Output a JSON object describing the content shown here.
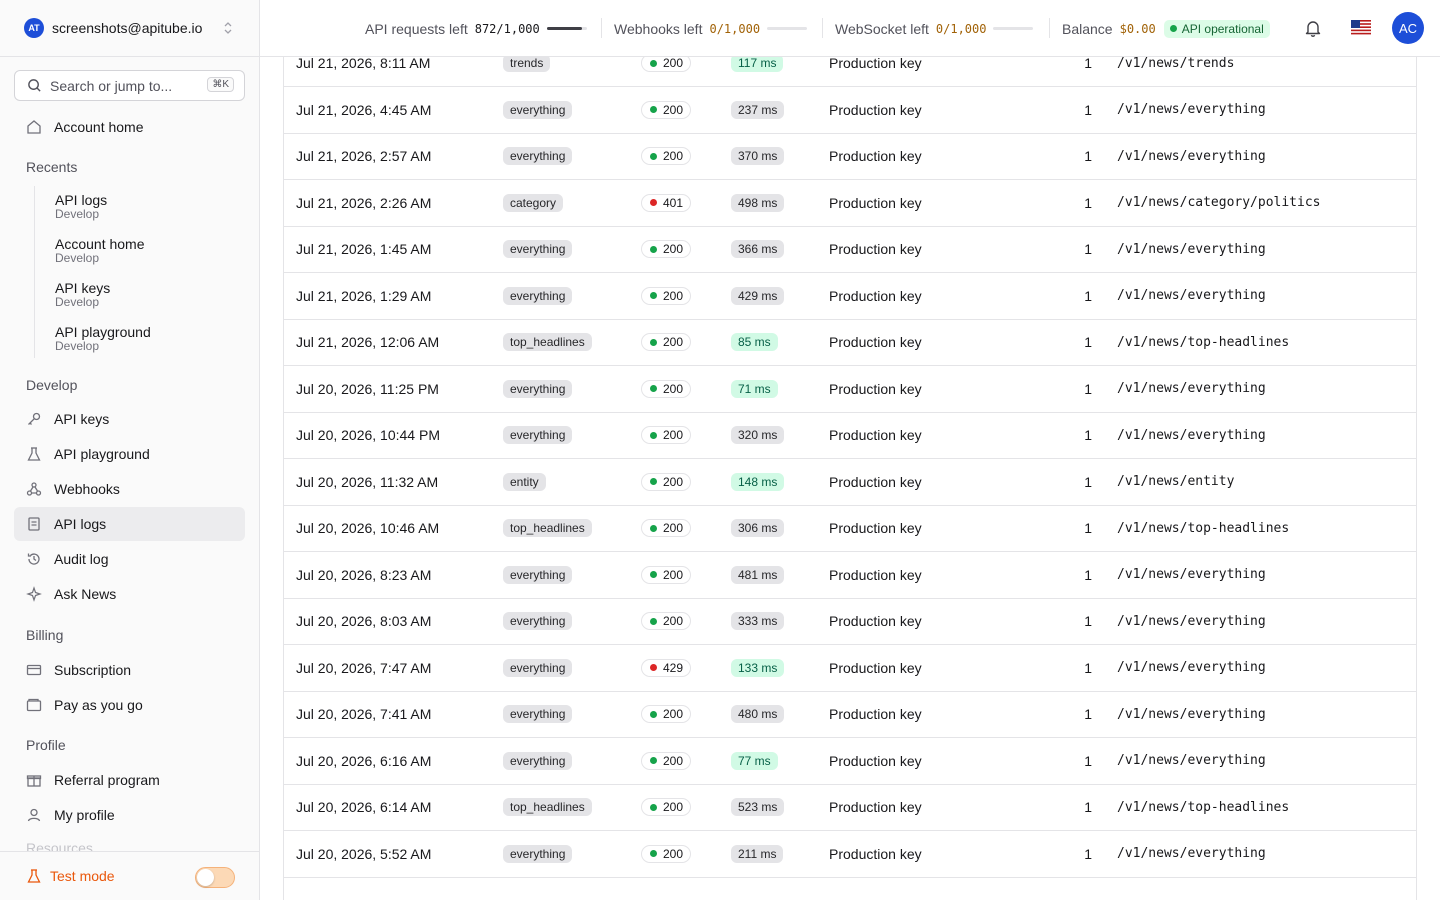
{
  "account": {
    "logo_text": "AT",
    "email": "screenshots@apitube.io"
  },
  "search": {
    "placeholder": "Search or jump to...",
    "shortcut": "⌘K"
  },
  "nav": {
    "account_home": "Account home"
  },
  "recents": {
    "title": "Recents",
    "items": [
      {
        "label": "API logs",
        "sub": "Develop"
      },
      {
        "label": "Account home",
        "sub": "Develop"
      },
      {
        "label": "API keys",
        "sub": "Develop"
      },
      {
        "label": "API playground",
        "sub": "Develop"
      }
    ]
  },
  "develop": {
    "title": "Develop",
    "items": [
      {
        "label": "API keys",
        "icon": "key-icon"
      },
      {
        "label": "API playground",
        "icon": "flask-icon"
      },
      {
        "label": "Webhooks",
        "icon": "webhook-icon"
      },
      {
        "label": "API logs",
        "icon": "logs-icon",
        "active": true
      },
      {
        "label": "Audit log",
        "icon": "history-icon"
      },
      {
        "label": "Ask News",
        "icon": "sparkle-icon"
      }
    ]
  },
  "billing": {
    "title": "Billing",
    "items": [
      {
        "label": "Subscription",
        "icon": "credit-card-icon"
      },
      {
        "label": "Pay as you go",
        "icon": "wallet-icon"
      }
    ]
  },
  "profile": {
    "title": "Profile",
    "items": [
      {
        "label": "Referral program",
        "icon": "gift-icon"
      },
      {
        "label": "My profile",
        "icon": "user-icon"
      }
    ]
  },
  "resources": {
    "label": "Resources"
  },
  "footer": {
    "test_mode_label": "Test mode",
    "test_mode_on": false
  },
  "header": {
    "api_requests": {
      "label": "API requests left",
      "value": "872/1,000",
      "fraction": 0.872,
      "value_color": "#18181b"
    },
    "webhooks": {
      "label": "Webhooks left",
      "value": "0/1,000",
      "fraction": 0,
      "value_color": "#a16207"
    },
    "websocket": {
      "label": "WebSocket left",
      "value": "0/1,000",
      "fraction": 0,
      "value_color": "#a16207"
    },
    "balance": {
      "label": "Balance",
      "value": "$0.00",
      "value_color": "#a16207"
    },
    "status": {
      "label": "API operational",
      "color": "#16a34a"
    },
    "avatar": "AC"
  },
  "colors": {
    "ok_dot": "#16a34a",
    "error_dot": "#dc2626",
    "fast_latency_bg": "#d1fae5",
    "fast_latency_text": "#065f46",
    "slow_latency_bg": "#e4e4e7",
    "slow_latency_text": "#27272a"
  },
  "logs": [
    {
      "date": "Jul 21, 2026, 8:11 AM",
      "endpoint": "trends",
      "status": "200",
      "latency": "117 ms",
      "fast": true,
      "key": "Production key",
      "cost": "1",
      "path": "/v1/news/trends"
    },
    {
      "date": "Jul 21, 2026, 4:45 AM",
      "endpoint": "everything",
      "status": "200",
      "latency": "237 ms",
      "fast": false,
      "key": "Production key",
      "cost": "1",
      "path": "/v1/news/everything"
    },
    {
      "date": "Jul 21, 2026, 2:57 AM",
      "endpoint": "everything",
      "status": "200",
      "latency": "370 ms",
      "fast": false,
      "key": "Production key",
      "cost": "1",
      "path": "/v1/news/everything"
    },
    {
      "date": "Jul 21, 2026, 2:26 AM",
      "endpoint": "category",
      "status": "401",
      "latency": "498 ms",
      "fast": false,
      "key": "Production key",
      "cost": "1",
      "path": "/v1/news/category/politics"
    },
    {
      "date": "Jul 21, 2026, 1:45 AM",
      "endpoint": "everything",
      "status": "200",
      "latency": "366 ms",
      "fast": false,
      "key": "Production key",
      "cost": "1",
      "path": "/v1/news/everything"
    },
    {
      "date": "Jul 21, 2026, 1:29 AM",
      "endpoint": "everything",
      "status": "200",
      "latency": "429 ms",
      "fast": false,
      "key": "Production key",
      "cost": "1",
      "path": "/v1/news/everything"
    },
    {
      "date": "Jul 21, 2026, 12:06 AM",
      "endpoint": "top_headlines",
      "status": "200",
      "latency": "85 ms",
      "fast": true,
      "key": "Production key",
      "cost": "1",
      "path": "/v1/news/top-headlines"
    },
    {
      "date": "Jul 20, 2026, 11:25 PM",
      "endpoint": "everything",
      "status": "200",
      "latency": "71 ms",
      "fast": true,
      "key": "Production key",
      "cost": "1",
      "path": "/v1/news/everything"
    },
    {
      "date": "Jul 20, 2026, 10:44 PM",
      "endpoint": "everything",
      "status": "200",
      "latency": "320 ms",
      "fast": false,
      "key": "Production key",
      "cost": "1",
      "path": "/v1/news/everything"
    },
    {
      "date": "Jul 20, 2026, 11:32 AM",
      "endpoint": "entity",
      "status": "200",
      "latency": "148 ms",
      "fast": true,
      "key": "Production key",
      "cost": "1",
      "path": "/v1/news/entity"
    },
    {
      "date": "Jul 20, 2026, 10:46 AM",
      "endpoint": "top_headlines",
      "status": "200",
      "latency": "306 ms",
      "fast": false,
      "key": "Production key",
      "cost": "1",
      "path": "/v1/news/top-headlines"
    },
    {
      "date": "Jul 20, 2026, 8:23 AM",
      "endpoint": "everything",
      "status": "200",
      "latency": "481 ms",
      "fast": false,
      "key": "Production key",
      "cost": "1",
      "path": "/v1/news/everything"
    },
    {
      "date": "Jul 20, 2026, 8:03 AM",
      "endpoint": "everything",
      "status": "200",
      "latency": "333 ms",
      "fast": false,
      "key": "Production key",
      "cost": "1",
      "path": "/v1/news/everything"
    },
    {
      "date": "Jul 20, 2026, 7:47 AM",
      "endpoint": "everything",
      "status": "429",
      "latency": "133 ms",
      "fast": true,
      "key": "Production key",
      "cost": "1",
      "path": "/v1/news/everything"
    },
    {
      "date": "Jul 20, 2026, 7:41 AM",
      "endpoint": "everything",
      "status": "200",
      "latency": "480 ms",
      "fast": false,
      "key": "Production key",
      "cost": "1",
      "path": "/v1/news/everything"
    },
    {
      "date": "Jul 20, 2026, 6:16 AM",
      "endpoint": "everything",
      "status": "200",
      "latency": "77 ms",
      "fast": true,
      "key": "Production key",
      "cost": "1",
      "path": "/v1/news/everything"
    },
    {
      "date": "Jul 20, 2026, 6:14 AM",
      "endpoint": "top_headlines",
      "status": "200",
      "latency": "523 ms",
      "fast": false,
      "key": "Production key",
      "cost": "1",
      "path": "/v1/news/top-headlines"
    },
    {
      "date": "Jul 20, 2026, 5:52 AM",
      "endpoint": "everything",
      "status": "200",
      "latency": "211 ms",
      "fast": false,
      "key": "Production key",
      "cost": "1",
      "path": "/v1/news/everything"
    }
  ]
}
